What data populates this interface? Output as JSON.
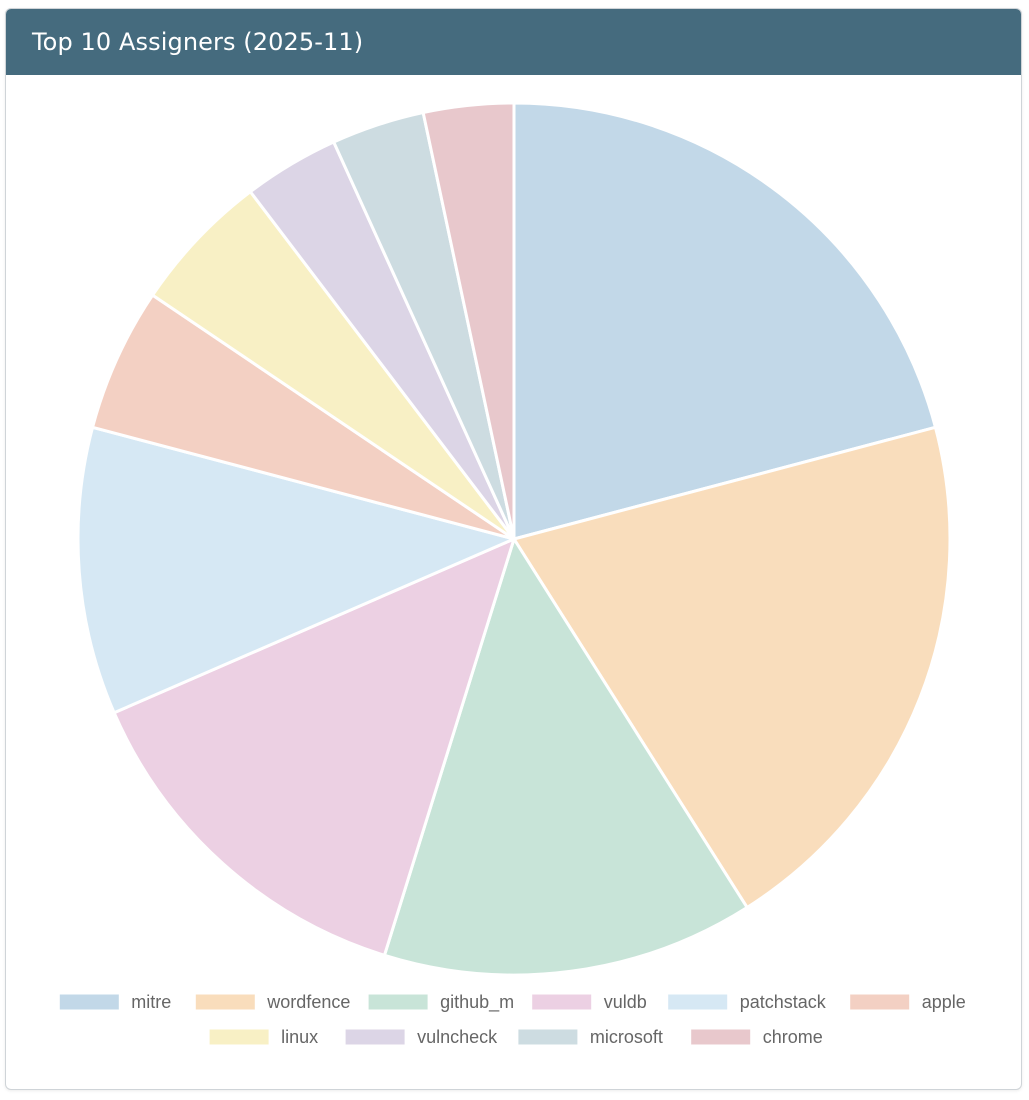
{
  "header": {
    "title": "Top 10 Assigners (2025-11)"
  },
  "chart_data": {
    "type": "pie",
    "title": "Top 10 Assigners (2025-11)",
    "categories": [
      "mitre",
      "wordfence",
      "github_m",
      "vuldb",
      "patchstack",
      "apple",
      "linux",
      "vulncheck",
      "microsoft",
      "chrome"
    ],
    "values": [
      20.0,
      19.3,
      13.2,
      13.1,
      10.2,
      5.1,
      5.0,
      3.4,
      3.3,
      3.2
    ],
    "colors": [
      "#c2d8e8",
      "#f9ddbc",
      "#c8e4d8",
      "#ecd0e3",
      "#d6e8f4",
      "#f3d0c3",
      "#f8f0c5",
      "#dcd5e6",
      "#cddce1",
      "#e8c8cc"
    ],
    "start_angle": "12 o'clock",
    "direction": "clockwise",
    "legend_position": "bottom"
  }
}
